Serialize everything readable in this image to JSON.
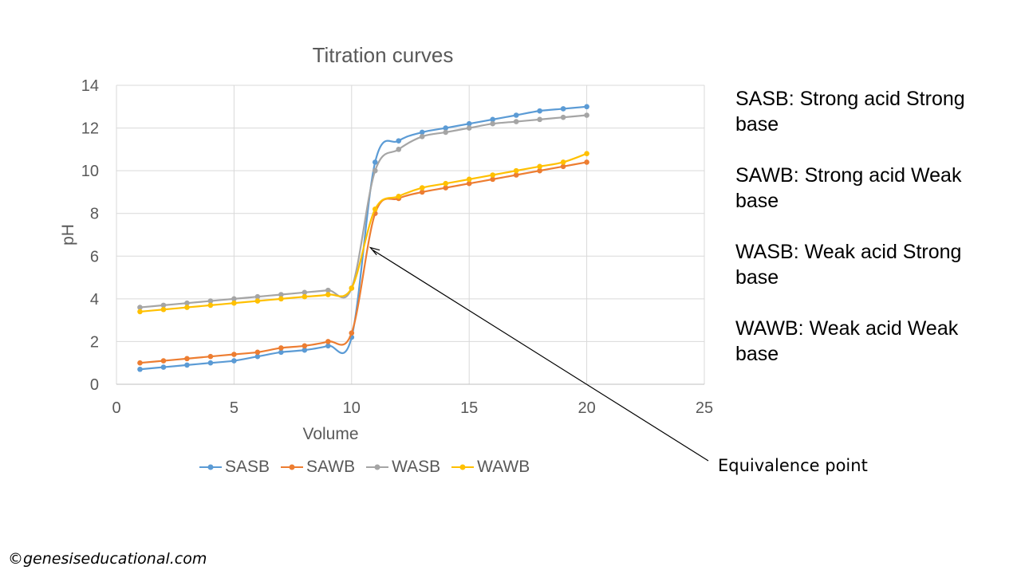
{
  "chart_data": {
    "type": "line",
    "title": "Titration curves",
    "xlabel": "Volume",
    "ylabel": "pH",
    "xlim": [
      0,
      25
    ],
    "ylim": [
      0,
      14
    ],
    "xticks": [
      0,
      5,
      10,
      15,
      20,
      25
    ],
    "yticks": [
      0,
      2,
      4,
      6,
      8,
      10,
      12,
      14
    ],
    "grid": true,
    "legend_position": "bottom",
    "x": [
      1,
      2,
      3,
      4,
      5,
      6,
      7,
      8,
      9,
      10,
      11,
      12,
      13,
      14,
      15,
      16,
      17,
      18,
      19,
      20
    ],
    "series": [
      {
        "name": "SASB",
        "color": "#5B9BD5",
        "values": [
          0.7,
          0.8,
          0.9,
          1.0,
          1.1,
          1.3,
          1.5,
          1.6,
          1.8,
          2.2,
          10.4,
          11.4,
          11.8,
          12.0,
          12.2,
          12.4,
          12.6,
          12.8,
          12.9,
          13.0
        ]
      },
      {
        "name": "SAWB",
        "color": "#ED7D31",
        "values": [
          1.0,
          1.1,
          1.2,
          1.3,
          1.4,
          1.5,
          1.7,
          1.8,
          2.0,
          2.4,
          8.0,
          8.7,
          9.0,
          9.2,
          9.4,
          9.6,
          9.8,
          10.0,
          10.2,
          10.4
        ]
      },
      {
        "name": "WASB",
        "color": "#A5A5A5",
        "values": [
          3.6,
          3.7,
          3.8,
          3.9,
          4.0,
          4.1,
          4.2,
          4.3,
          4.4,
          4.5,
          10.0,
          11.0,
          11.6,
          11.8,
          12.0,
          12.2,
          12.3,
          12.4,
          12.5,
          12.6
        ]
      },
      {
        "name": "WAWB",
        "color": "#FFC000",
        "values": [
          3.4,
          3.5,
          3.6,
          3.7,
          3.8,
          3.9,
          4.0,
          4.1,
          4.2,
          4.5,
          8.2,
          8.8,
          9.2,
          9.4,
          9.6,
          9.8,
          10.0,
          10.2,
          10.4,
          10.8
        ]
      }
    ],
    "annotation": {
      "text": "Equivalence point",
      "target_x": 10.8,
      "target_y": 6.4
    }
  },
  "descriptions": [
    "SASB: Strong acid Strong base",
    "SAWB: Strong acid Weak base",
    "WASB: Weak acid Strong base",
    "WAWB: Weak acid Weak base"
  ],
  "copyright": "©genesiseducational.com"
}
